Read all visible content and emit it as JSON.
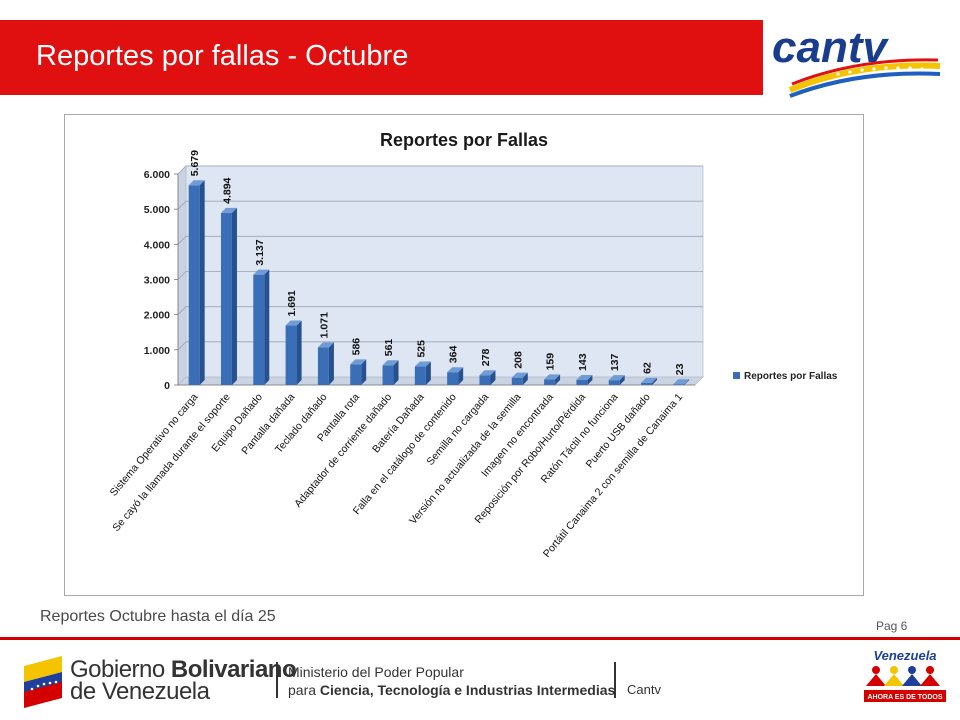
{
  "slide": {
    "title": "Reportes por fallas - Octubre",
    "note": "Reportes Octubre hasta el día 25",
    "page": "Pag 6"
  },
  "header_logo": {
    "text": "cantv",
    "colors": [
      "#1a3c8c",
      "#f5c400",
      "#1f5fc0",
      "#e01010"
    ]
  },
  "footer": {
    "gob_line1_a": "Gobierno ",
    "gob_line1_b": "Bolivariano",
    "gob_line2": "de Venezuela",
    "ministry_line1": "Ministerio del Poder Popular",
    "ministry_line2_a": "para ",
    "ministry_line2_b": "Ciencia, Tecnología e Industrias Intermedias",
    "company": "Cantv",
    "badge_line1": "Venezuela",
    "badge_line2": "AHORA ES DE TODOS"
  },
  "colors": {
    "title_bar": "#e01010",
    "bar": "#3a6fb8",
    "plot_bg": "#dde6f2"
  },
  "chart_data": {
    "type": "bar",
    "title": "Reportes por Fallas",
    "xlabel": "",
    "ylabel": "",
    "ylim": [
      0,
      6000
    ],
    "yticks": [
      0,
      1000,
      2000,
      3000,
      4000,
      5000,
      6000
    ],
    "ytick_labels": [
      "0",
      "1.000",
      "2.000",
      "3.000",
      "4.000",
      "5.000",
      "6.000"
    ],
    "legend_position": "right",
    "categories": [
      "Sistema Operativo no carga",
      "Se cayó la llamada durante el soporte",
      "Equipo Dañado",
      "Pantalla dañada",
      "Teclado dañado",
      "Pantalla rota",
      "Adaptador de corriente dañado",
      "Batería Dañada",
      "Falla en el catálogo de contenido",
      "Semilla no cargada",
      "Versión no actualizada de la semilla",
      "Imagen no encontrada",
      "Reposición por Robo/Hurto/Pérdida",
      "Ratón Táctil no funciona",
      "Puerto USB dañado",
      "Portátil Canaima 2 con semilla de Canaima 1"
    ],
    "series": [
      {
        "name": "Reportes por Fallas",
        "values": [
          5679,
          4894,
          3137,
          1691,
          1071,
          586,
          561,
          525,
          364,
          278,
          208,
          159,
          143,
          137,
          62,
          23
        ],
        "labels": [
          "5.679",
          "4.894",
          "3.137",
          "1.691",
          "1.071",
          "586",
          "561",
          "525",
          "364",
          "278",
          "208",
          "159",
          "143",
          "137",
          "62",
          "23"
        ]
      }
    ]
  }
}
